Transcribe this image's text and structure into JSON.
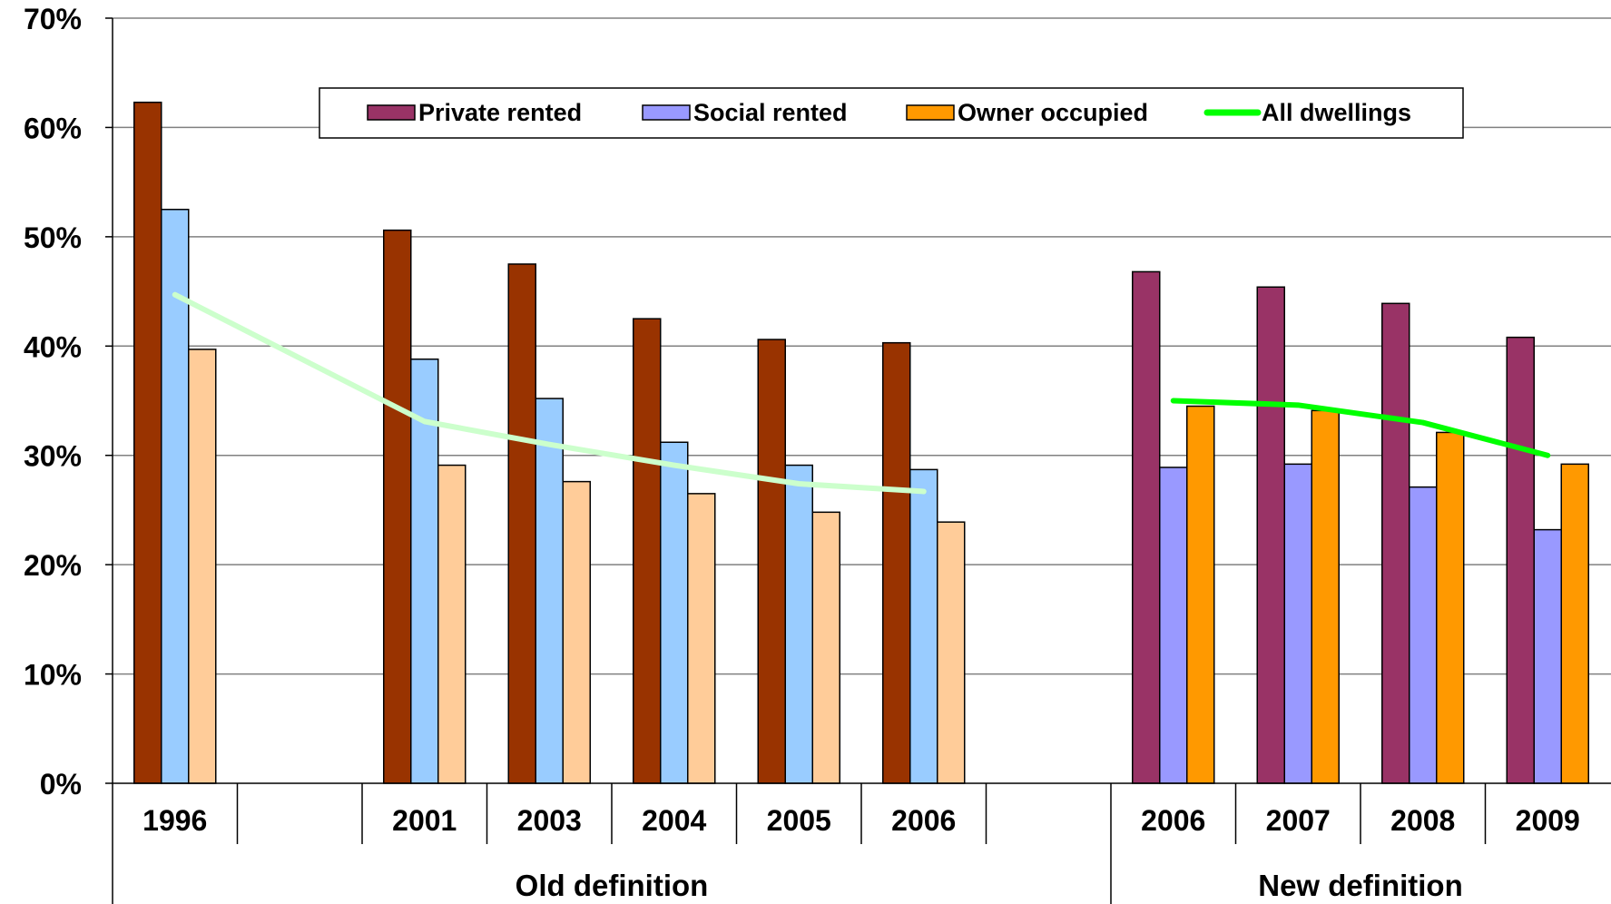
{
  "chart_data": {
    "type": "bar",
    "ylim": [
      0,
      70
    ],
    "y_ticks": [
      "0%",
      "10%",
      "20%",
      "30%",
      "40%",
      "50%",
      "60%",
      "70%"
    ],
    "grid": true,
    "legend_position": "top",
    "categories": [
      "1996",
      "",
      "2001",
      "2003",
      "2004",
      "2005",
      "2006",
      "",
      "2006",
      "2007",
      "2008",
      "2009"
    ],
    "groups": [
      {
        "label": "Old definition",
        "categories": [
          "1996",
          "",
          "2001",
          "2003",
          "2004",
          "2005",
          "2006",
          ""
        ]
      },
      {
        "label": "New definition",
        "categories": [
          "2006",
          "2007",
          "2008",
          "2009"
        ]
      }
    ],
    "series": [
      {
        "name": "Private rented",
        "type": "bar",
        "values": [
          62.3,
          null,
          50.6,
          47.5,
          42.5,
          40.6,
          40.3,
          null,
          46.8,
          45.4,
          43.9,
          40.8
        ],
        "colors": {
          "old": "#993300",
          "new": "#993366"
        }
      },
      {
        "name": "Social rented",
        "type": "bar",
        "values": [
          52.5,
          null,
          38.8,
          35.2,
          31.2,
          29.1,
          28.7,
          null,
          28.9,
          29.2,
          27.1,
          23.2
        ],
        "colors": {
          "old": "#99ccff",
          "new": "#9999ff"
        }
      },
      {
        "name": "Owner occupied",
        "type": "bar",
        "values": [
          39.7,
          null,
          29.1,
          27.6,
          26.5,
          24.8,
          23.9,
          null,
          34.5,
          34.1,
          32.1,
          29.2
        ],
        "colors": {
          "old": "#ffcc99",
          "new": "#ff9900"
        }
      },
      {
        "name": "All dwellings",
        "type": "line",
        "values": [
          44.7,
          null,
          33.1,
          31.0,
          29.1,
          27.4,
          26.7,
          null,
          35.0,
          34.6,
          33.0,
          30.0
        ],
        "colors": {
          "old": "#ccffcc",
          "new": "#00ff00"
        }
      }
    ],
    "legend": {
      "marker_colors": [
        "#993366",
        "#9999ff",
        "#ff9900",
        "#00ff00"
      ]
    }
  }
}
